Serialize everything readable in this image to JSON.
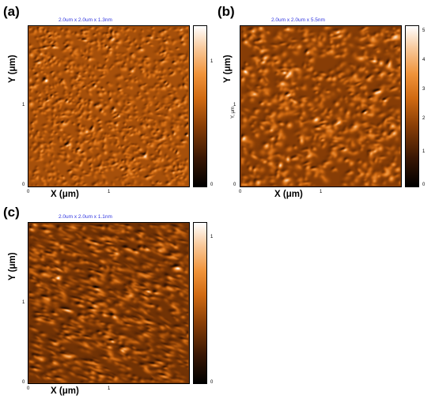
{
  "panels": [
    {
      "label": "(a)",
      "scan_title": "2.0um x 2.0um x 1.3nm",
      "x_axis_label": "X (μm)",
      "y_axis_label": "Y (μm)",
      "x_ticks": [
        "0",
        "1"
      ],
      "y_ticks": [
        "0",
        "1"
      ],
      "colorbar_ticks": [
        "0",
        "1"
      ],
      "colorbar_max_nm": 1.3,
      "texture": "fine granular, light and dark grains uniformly distributed"
    },
    {
      "label": "(b)",
      "scan_title": "2.0um x 2.0um x 5.5nm",
      "x_axis_label": "X (μm)",
      "y_axis_label": "Y (μm)",
      "y_axis_label_small": "Y, μm",
      "x_ticks": [
        "0",
        "1"
      ],
      "y_ticks": [
        "0",
        "1"
      ],
      "colorbar_ticks": [
        "0",
        "1",
        "2",
        "3",
        "4",
        "5"
      ],
      "colorbar_max_nm": 5.5,
      "texture": "coarse grains with scattered white clusters"
    },
    {
      "label": "(c)",
      "scan_title": "2.0um x 2.0um x 1.1nm",
      "x_axis_label": "X (μm)",
      "y_axis_label": "Y (μm)",
      "x_ticks": [
        "0",
        "1"
      ],
      "y_ticks": [
        "0",
        "1"
      ],
      "colorbar_ticks": [
        "0",
        "1"
      ],
      "colorbar_max_nm": 1.1,
      "texture": "elongated diagonal grains streaked top-left to bottom-right"
    }
  ],
  "colormap": [
    "#000000",
    "#3a1704",
    "#8a3f06",
    "#d06a12",
    "#f0933a",
    "#f8c89a",
    "#ffffff"
  ]
}
